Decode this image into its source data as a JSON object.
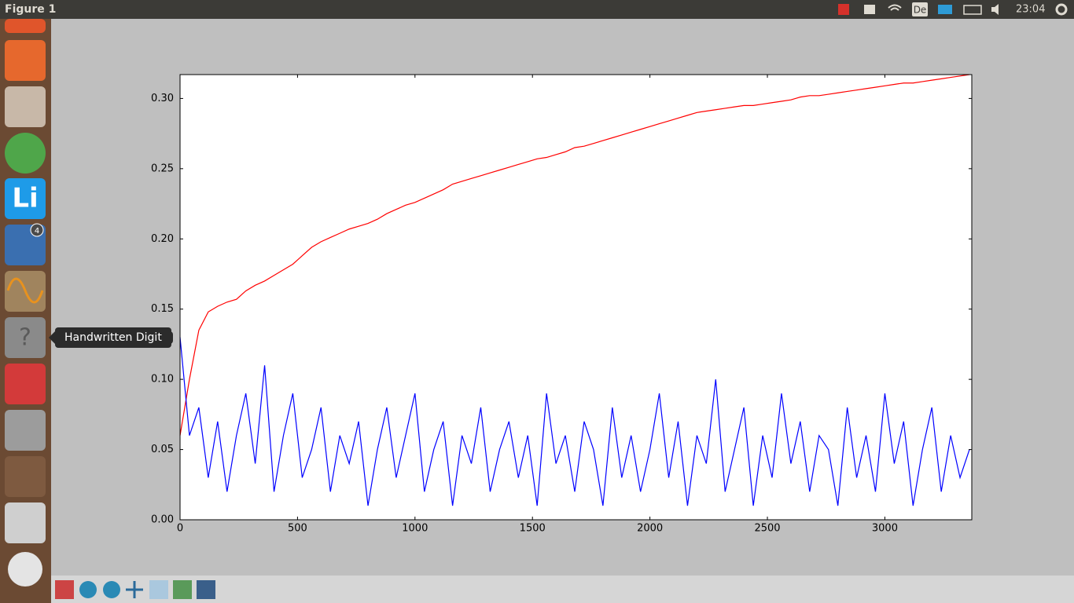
{
  "top_bar": {
    "window_title": "Figure 1",
    "keyboard": "De",
    "clock": "23:04"
  },
  "launcher": {
    "tooltip": "Handwritten Digit",
    "writer_icon": "Li",
    "mail_badge": "4"
  },
  "chart_data": {
    "type": "line",
    "x": [
      0,
      40,
      80,
      120,
      160,
      200,
      240,
      280,
      320,
      360,
      400,
      440,
      480,
      520,
      560,
      600,
      640,
      680,
      720,
      760,
      800,
      840,
      880,
      920,
      960,
      1000,
      1040,
      1080,
      1120,
      1160,
      1200,
      1240,
      1280,
      1320,
      1360,
      1400,
      1440,
      1480,
      1520,
      1560,
      1600,
      1640,
      1680,
      1720,
      1760,
      1800,
      1840,
      1880,
      1920,
      1960,
      2000,
      2040,
      2080,
      2120,
      2160,
      2200,
      2240,
      2280,
      2320,
      2360,
      2400,
      2440,
      2480,
      2520,
      2560,
      2600,
      2640,
      2680,
      2720,
      2760,
      2800,
      2840,
      2880,
      2920,
      2960,
      3000,
      3040,
      3080,
      3120,
      3160,
      3200,
      3240,
      3280,
      3320,
      3360
    ],
    "series": [
      {
        "color": "#ff0000",
        "values": [
          0.06,
          0.1,
          0.135,
          0.148,
          0.152,
          0.155,
          0.157,
          0.163,
          0.167,
          0.17,
          0.174,
          0.178,
          0.182,
          0.188,
          0.194,
          0.198,
          0.201,
          0.204,
          0.207,
          0.209,
          0.211,
          0.214,
          0.218,
          0.221,
          0.224,
          0.226,
          0.229,
          0.232,
          0.235,
          0.239,
          0.241,
          0.243,
          0.245,
          0.247,
          0.249,
          0.251,
          0.253,
          0.255,
          0.257,
          0.258,
          0.26,
          0.262,
          0.265,
          0.266,
          0.268,
          0.27,
          0.272,
          0.274,
          0.276,
          0.278,
          0.28,
          0.282,
          0.284,
          0.286,
          0.288,
          0.29,
          0.291,
          0.292,
          0.293,
          0.294,
          0.295,
          0.295,
          0.296,
          0.297,
          0.298,
          0.299,
          0.301,
          0.302,
          0.302,
          0.303,
          0.304,
          0.305,
          0.306,
          0.307,
          0.308,
          0.309,
          0.31,
          0.311,
          0.311,
          0.312,
          0.313,
          0.314,
          0.315,
          0.316,
          0.317
        ]
      },
      {
        "color": "#0000ff",
        "values": [
          0.13,
          0.06,
          0.08,
          0.03,
          0.07,
          0.02,
          0.06,
          0.09,
          0.04,
          0.11,
          0.02,
          0.06,
          0.09,
          0.03,
          0.05,
          0.08,
          0.02,
          0.06,
          0.04,
          0.07,
          0.01,
          0.05,
          0.08,
          0.03,
          0.06,
          0.09,
          0.02,
          0.05,
          0.07,
          0.01,
          0.06,
          0.04,
          0.08,
          0.02,
          0.05,
          0.07,
          0.03,
          0.06,
          0.01,
          0.09,
          0.04,
          0.06,
          0.02,
          0.07,
          0.05,
          0.01,
          0.08,
          0.03,
          0.06,
          0.02,
          0.05,
          0.09,
          0.03,
          0.07,
          0.01,
          0.06,
          0.04,
          0.1,
          0.02,
          0.05,
          0.08,
          0.01,
          0.06,
          0.03,
          0.09,
          0.04,
          0.07,
          0.02,
          0.06,
          0.05,
          0.01,
          0.08,
          0.03,
          0.06,
          0.02,
          0.09,
          0.04,
          0.07,
          0.01,
          0.05,
          0.08,
          0.02,
          0.06,
          0.03,
          0.05
        ]
      }
    ],
    "xlim": [
      0,
      3370
    ],
    "xticks": [
      0,
      500,
      1000,
      1500,
      2000,
      2500,
      3000
    ],
    "ylim": [
      0,
      0.317
    ],
    "yticks": [
      {
        "value": 0,
        "label": "0.00"
      },
      0.05,
      {
        "value": 0.1,
        "label": "0.10"
      },
      0.15,
      {
        "value": 0.2,
        "label": "0.20"
      },
      0.25,
      {
        "value": 0.3,
        "label": "0.30"
      }
    ],
    "grid": false
  }
}
